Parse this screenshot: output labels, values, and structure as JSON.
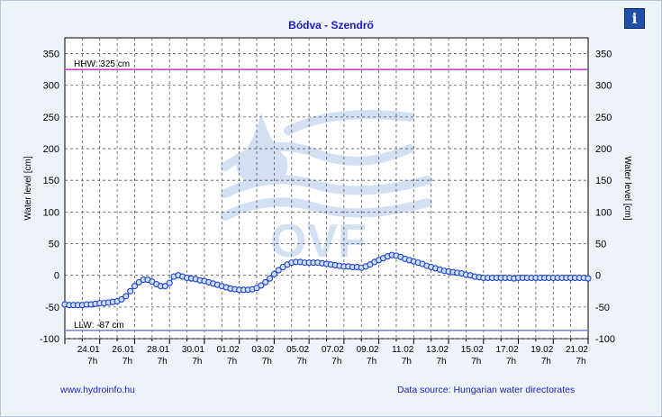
{
  "title": "Bódva - Szendrő",
  "info_icon": "info-icon",
  "footer": {
    "link": "www.hydroinfo.hu",
    "source": "Data source: Hungarian water directorates"
  },
  "colors": {
    "hhw": "#cc44cc",
    "llw": "#8888cc",
    "series": "#1a3dcc",
    "marker_fill": "#cfe0ff",
    "title": "#1a1acc"
  },
  "chart_data": {
    "type": "line",
    "title": "Bódva - Szendrő",
    "ylabel": "Water level [cm]",
    "ylabel_right": "Water level [cm]",
    "ylim": [
      -100,
      375
    ],
    "yticks": [
      -100,
      -50,
      0,
      50,
      100,
      150,
      200,
      250,
      300,
      350
    ],
    "grid": true,
    "x_tick_labels": [
      {
        "date": "24.01",
        "time": "7h"
      },
      {
        "date": "26.01",
        "time": "7h"
      },
      {
        "date": "28.01",
        "time": "7h"
      },
      {
        "date": "30.01",
        "time": "7h"
      },
      {
        "date": "01.02",
        "time": "7h"
      },
      {
        "date": "03.02",
        "time": "7h"
      },
      {
        "date": "05.02",
        "time": "7h"
      },
      {
        "date": "07.02",
        "time": "7h"
      },
      {
        "date": "09.02",
        "time": "7h"
      },
      {
        "date": "11.02",
        "time": "7h"
      },
      {
        "date": "13.02",
        "time": "7h"
      },
      {
        "date": "15.02",
        "time": "7h"
      },
      {
        "date": "17.02",
        "time": "7h"
      },
      {
        "date": "19.02",
        "time": "7h"
      },
      {
        "date": "21.02",
        "time": "7h"
      }
    ],
    "reference_lines": [
      {
        "label": "HHW: 325 cm",
        "value": 325
      },
      {
        "label": "LLW: -87 cm",
        "value": -87
      }
    ],
    "series": [
      {
        "x": [
          0.0,
          0.25,
          0.5,
          0.75,
          1.0,
          1.25,
          1.5,
          1.75,
          2.0,
          2.25,
          2.5,
          2.75,
          3.0,
          3.25,
          3.5,
          3.75,
          4.0,
          4.25,
          4.5,
          4.75,
          5.0,
          5.25,
          5.5,
          5.75,
          6.0,
          6.25,
          6.5,
          6.75,
          7.0,
          7.25,
          7.5,
          7.75,
          8.0,
          8.25,
          8.5,
          8.75,
          9.0,
          9.25,
          9.5,
          9.75,
          10.0,
          10.25,
          10.5,
          10.75,
          11.0,
          11.25,
          11.5,
          11.75,
          12.0,
          12.25,
          12.5,
          12.75,
          13.0,
          13.25,
          13.5,
          13.75,
          14.0,
          14.25,
          14.5,
          14.75,
          15.0,
          15.25,
          15.5,
          15.75,
          16.0,
          16.25,
          16.5,
          16.75,
          17.0,
          17.25,
          17.5,
          17.75,
          18.0,
          18.25,
          18.5,
          18.75,
          19.0,
          19.25,
          19.5,
          19.75,
          20.0,
          20.25,
          20.5,
          20.75,
          21.0,
          21.25,
          21.5,
          21.75,
          22.0,
          22.25,
          22.5,
          22.75,
          23.0,
          23.25,
          23.5,
          23.75,
          24.0,
          24.25,
          24.5,
          24.75,
          25.0,
          25.25,
          25.5,
          25.75,
          26.0,
          26.25,
          26.5,
          26.75,
          27.0,
          27.25,
          27.5,
          27.75,
          28.0,
          28.25,
          28.5,
          28.75,
          29.0,
          29.25,
          29.5,
          29.75,
          30.0
        ],
        "values": [
          -46,
          -47,
          -47,
          -47,
          -47,
          -46,
          -46,
          -45,
          -44,
          -44,
          -43,
          -42,
          -41,
          -38,
          -33,
          -25,
          -17,
          -11,
          -7,
          -7,
          -10,
          -14,
          -17,
          -17,
          -12,
          -2,
          0,
          -2,
          -4,
          -5,
          -6,
          -8,
          -9,
          -11,
          -13,
          -15,
          -17,
          -19,
          -21,
          -22,
          -23,
          -23,
          -23,
          -22,
          -20,
          -16,
          -11,
          -5,
          2,
          8,
          13,
          17,
          20,
          21,
          21,
          20,
          20,
          20,
          20,
          19,
          18,
          17,
          16,
          15,
          14,
          14,
          13,
          13,
          12,
          14,
          17,
          21,
          24,
          27,
          30,
          32,
          31,
          29,
          26,
          24,
          22,
          20,
          18,
          15,
          13,
          11,
          9,
          7,
          6,
          5,
          4,
          3,
          1,
          0,
          -2,
          -3,
          -4,
          -4,
          -4,
          -4,
          -4,
          -4,
          -4,
          -5,
          -4,
          -4,
          -4,
          -4,
          -4,
          -4,
          -4,
          -4,
          -4,
          -4,
          -4,
          -4,
          -4,
          -4,
          -4,
          -4,
          -5
        ]
      }
    ]
  }
}
